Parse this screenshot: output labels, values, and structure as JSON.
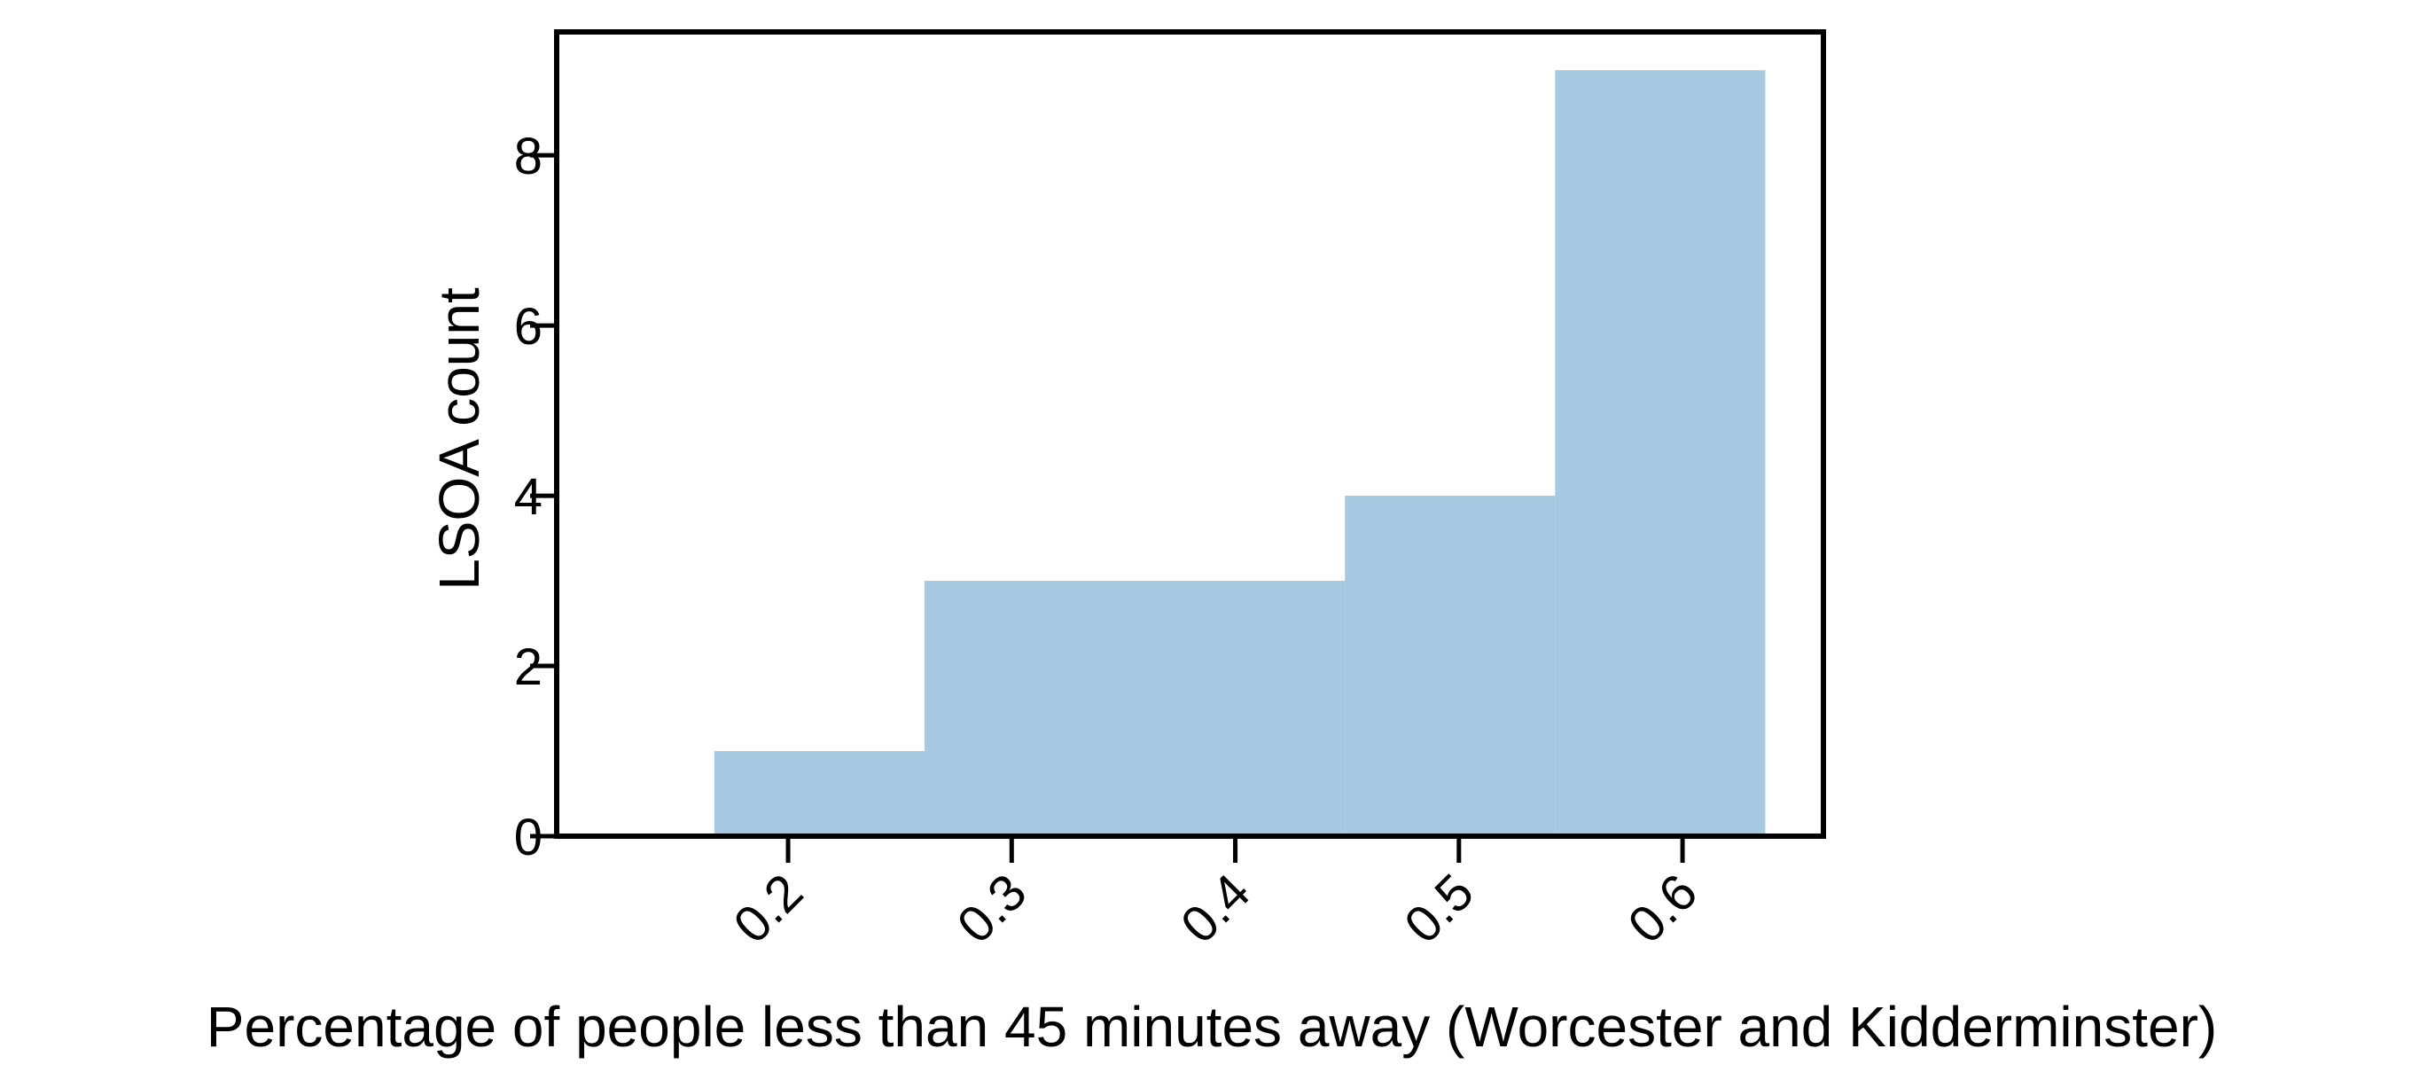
{
  "chart_data": {
    "type": "bar",
    "subtype": "histogram",
    "xlabel": "Percentage of people less than 45 minutes away (Worcester and Kidderminster)",
    "ylabel": "LSOA count",
    "bins": [
      {
        "x0": 0.167,
        "x1": 0.261,
        "count": 1
      },
      {
        "x0": 0.261,
        "x1": 0.355,
        "count": 3
      },
      {
        "x0": 0.355,
        "x1": 0.449,
        "count": 3
      },
      {
        "x0": 0.449,
        "x1": 0.543,
        "count": 4
      },
      {
        "x0": 0.543,
        "x1": 0.637,
        "count": 9
      }
    ],
    "xlim": [
      0.11,
      0.663
    ],
    "ylim": [
      0,
      9.45
    ],
    "xticks": [
      0.2,
      0.3,
      0.4,
      0.5,
      0.6
    ],
    "xtick_labels": [
      "0.2",
      "0.3",
      "0.4",
      "0.5",
      "0.6"
    ],
    "yticks": [
      0,
      2,
      4,
      6,
      8
    ],
    "ytick_labels": [
      "0",
      "2",
      "4",
      "6",
      "8"
    ],
    "xtick_rotation": 45,
    "grid": false,
    "bar_color": "#a6c8e1",
    "axis_color": "#000000",
    "spines": {
      "left": "offset",
      "bottom": "offset",
      "top": "full",
      "right": "full"
    }
  }
}
